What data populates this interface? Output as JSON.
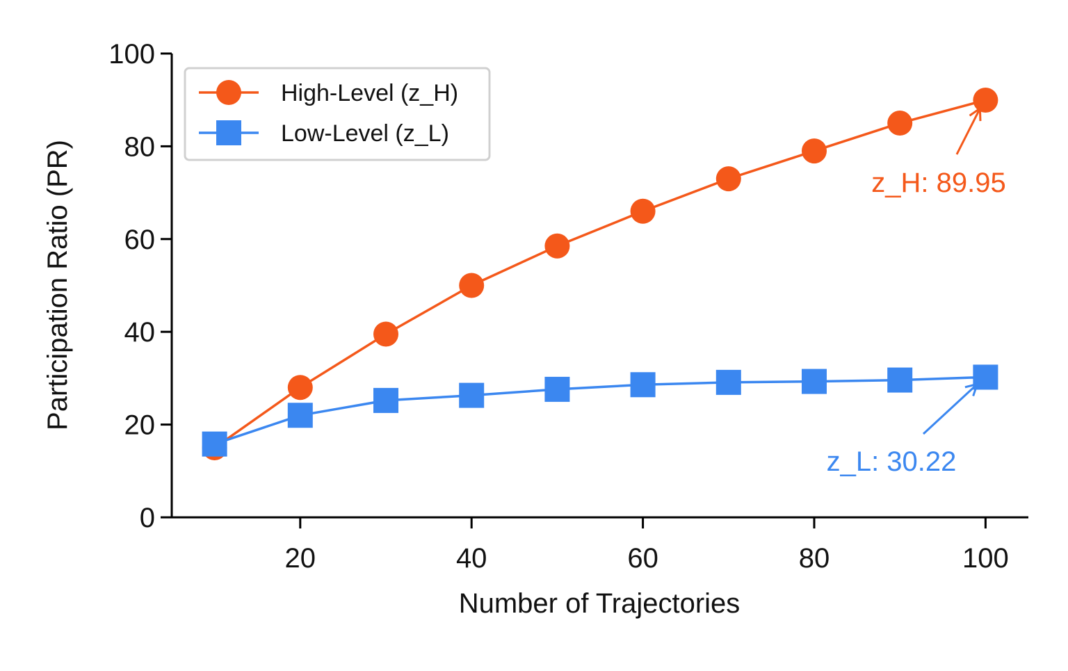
{
  "chart_data": {
    "type": "line",
    "title": "",
    "xlabel": "Number of Trajectories",
    "ylabel": "Participation Ratio (PR)",
    "xlim": [
      5,
      105
    ],
    "ylim": [
      0,
      100
    ],
    "xticks": [
      20,
      40,
      60,
      80,
      100
    ],
    "yticks": [
      0,
      20,
      40,
      60,
      80,
      100
    ],
    "grid": false,
    "legend_position": "top-left",
    "x": [
      10,
      20,
      30,
      40,
      50,
      60,
      70,
      80,
      90,
      100
    ],
    "series": [
      {
        "name": "High-Level (z_H)",
        "color": "#f4581a",
        "marker": "circle",
        "values": [
          15.0,
          28.0,
          39.5,
          50.0,
          58.5,
          66.0,
          73.0,
          79.0,
          85.0,
          89.95
        ]
      },
      {
        "name": "Low-Level (z_L)",
        "color": "#3b87f0",
        "marker": "square",
        "values": [
          15.8,
          22.0,
          25.2,
          26.3,
          27.6,
          28.6,
          29.1,
          29.3,
          29.6,
          30.22
        ]
      }
    ],
    "annotations": [
      {
        "text": "z_H: 89.95",
        "series": 0,
        "x": 100,
        "y": 89.95,
        "color": "#f4581a"
      },
      {
        "text": "z_L: 30.22",
        "series": 1,
        "x": 100,
        "y": 30.22,
        "color": "#3b87f0"
      }
    ]
  }
}
